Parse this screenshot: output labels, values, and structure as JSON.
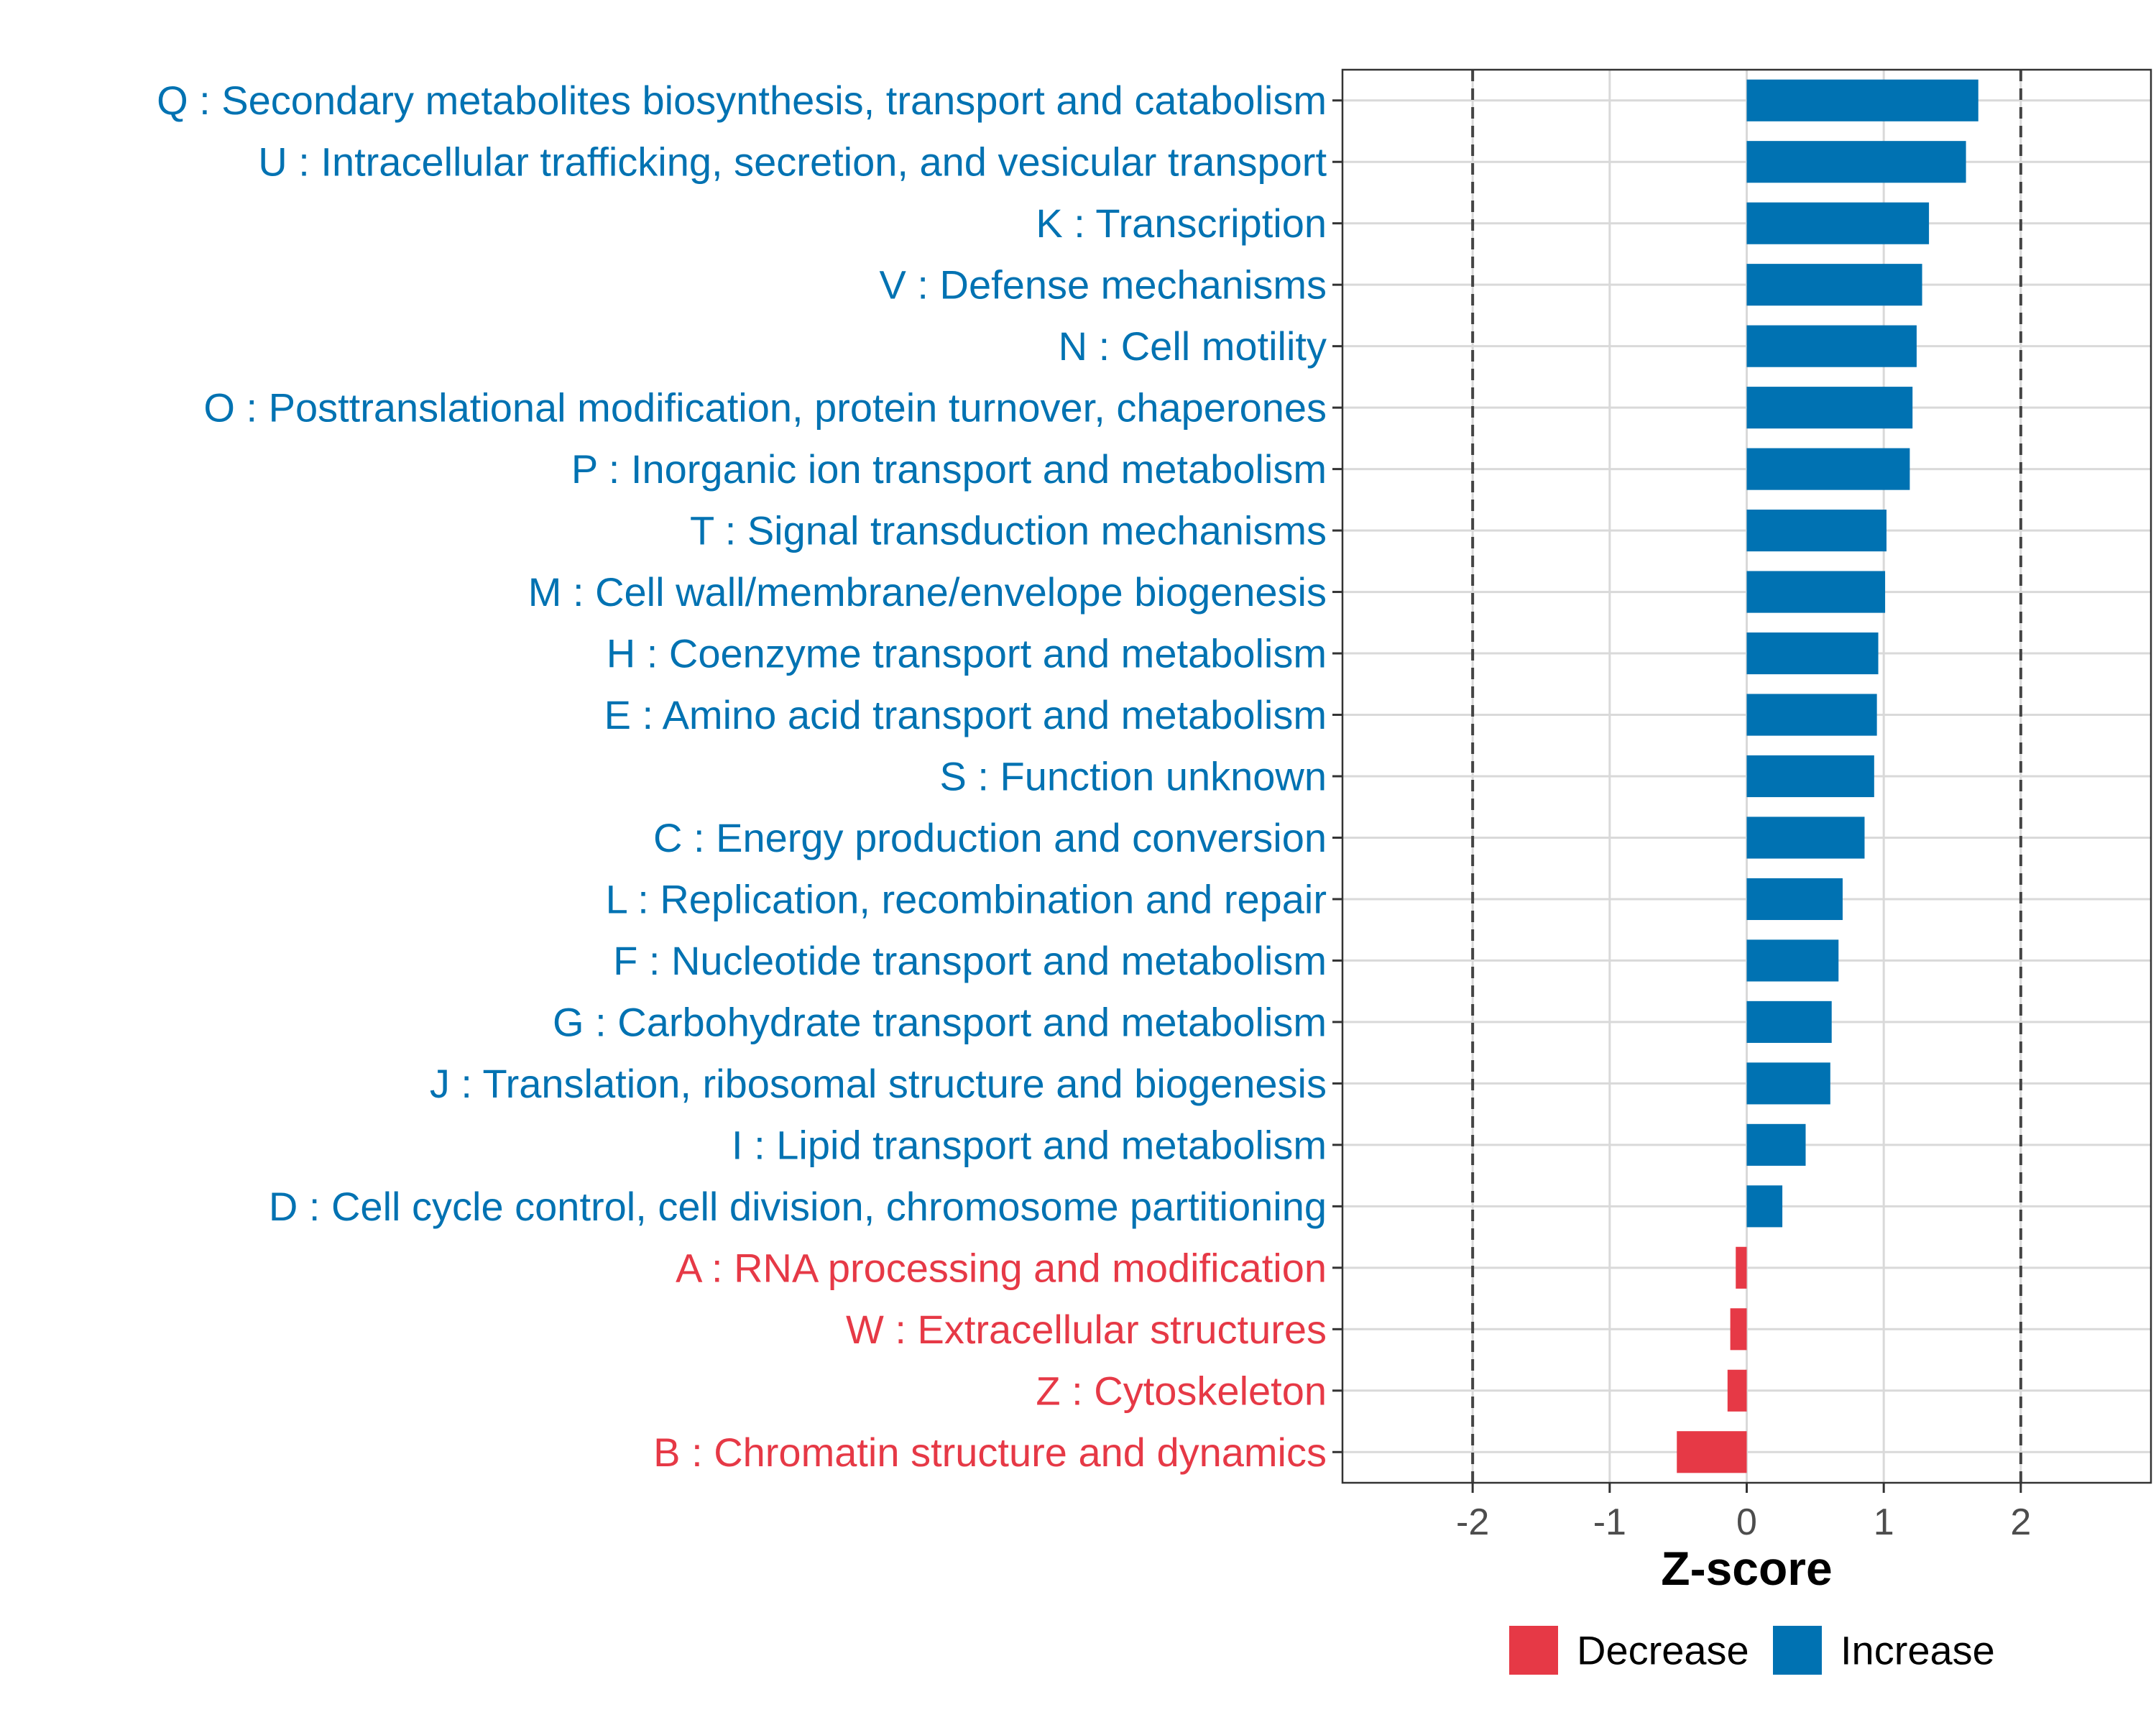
{
  "chart_data": {
    "type": "bar",
    "orientation": "horizontal",
    "xlabel": "Z-score",
    "ylabel": "",
    "xlim": [
      -2.95,
      2.95
    ],
    "x_ticks": [
      -2,
      -1,
      0,
      1,
      2
    ],
    "x_tick_labels": [
      "-2",
      "-1",
      "0",
      "1",
      "2"
    ],
    "reference_lines": [
      -2,
      2
    ],
    "grid": true,
    "legend_position": "bottom",
    "colors": {
      "Decrease": "#e63946",
      "Increase": "#0072b2"
    },
    "legend": [
      {
        "label": "Decrease",
        "color": "#e63946"
      },
      {
        "label": "Increase",
        "color": "#0072b2"
      }
    ],
    "categories": [
      "Q : Secondary metabolites biosynthesis, transport and catabolism",
      "U : Intracellular trafficking, secretion, and vesicular transport",
      "K : Transcription",
      "V : Defense mechanisms",
      "N : Cell motility",
      "O : Posttranslational modification, protein turnover, chaperones",
      "P : Inorganic ion transport and metabolism",
      "T : Signal transduction mechanisms",
      "M : Cell wall/membrane/envelope biogenesis",
      "H : Coenzyme transport and metabolism",
      "E : Amino acid transport and metabolism",
      "S : Function unknown",
      "C : Energy production and conversion",
      "L : Replication, recombination and repair",
      "F : Nucleotide transport and metabolism",
      "G : Carbohydrate transport and metabolism",
      "J : Translation, ribosomal structure and biogenesis",
      "I : Lipid transport and metabolism",
      "D : Cell cycle control, cell division, chromosome partitioning",
      "A : RNA processing and modification",
      "W : Extracellular structures",
      "Z : Cytoskeleton",
      "B : Chromatin structure and dynamics"
    ],
    "values": [
      1.69,
      1.6,
      1.33,
      1.28,
      1.24,
      1.21,
      1.19,
      1.02,
      1.01,
      0.96,
      0.95,
      0.93,
      0.86,
      0.7,
      0.67,
      0.62,
      0.61,
      0.43,
      0.26,
      -0.08,
      -0.12,
      -0.14,
      -0.51
    ],
    "groups": [
      "Increase",
      "Increase",
      "Increase",
      "Increase",
      "Increase",
      "Increase",
      "Increase",
      "Increase",
      "Increase",
      "Increase",
      "Increase",
      "Increase",
      "Increase",
      "Increase",
      "Increase",
      "Increase",
      "Increase",
      "Increase",
      "Increase",
      "Decrease",
      "Decrease",
      "Decrease",
      "Decrease"
    ]
  }
}
